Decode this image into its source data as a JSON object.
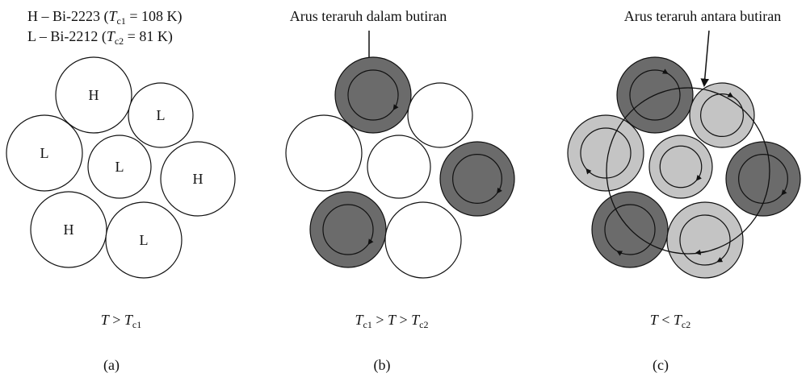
{
  "legend": [
    [
      {
        "text": "H – Bi-2223 ("
      },
      {
        "text": "T",
        "italic": true
      },
      {
        "text": "c1",
        "sub": true
      },
      {
        "text": " = 108 K)"
      }
    ],
    [
      {
        "text": "L – Bi-2212  ("
      },
      {
        "text": "T",
        "italic": true
      },
      {
        "text": "c2",
        "sub": true
      },
      {
        "text": " = 81 K)"
      }
    ]
  ],
  "grain_labels": [
    "H",
    "L",
    "L",
    "L",
    "H",
    "H",
    "L"
  ],
  "panel_b_title": "Arus teraruh dalam butiran",
  "panel_c_title": "Arus teraruh antara butiran",
  "conditions": [
    [
      {
        "text": "T",
        "italic": true
      },
      {
        "text": " > "
      },
      {
        "text": "T",
        "italic": true
      },
      {
        "text": "c1",
        "sub": true
      }
    ],
    [
      {
        "text": "T",
        "italic": true
      },
      {
        "text": "c1",
        "sub": true
      },
      {
        "text": " > "
      },
      {
        "text": "T",
        "italic": true
      },
      {
        "text": " > "
      },
      {
        "text": "T",
        "italic": true
      },
      {
        "text": "c2",
        "sub": true
      }
    ],
    [
      {
        "text": "T",
        "italic": true
      },
      {
        "text": " < "
      },
      {
        "text": "T",
        "italic": true
      },
      {
        "text": "c2",
        "sub": true
      }
    ]
  ],
  "panel_letters": [
    "(a)",
    "(b)",
    "(c)"
  ]
}
